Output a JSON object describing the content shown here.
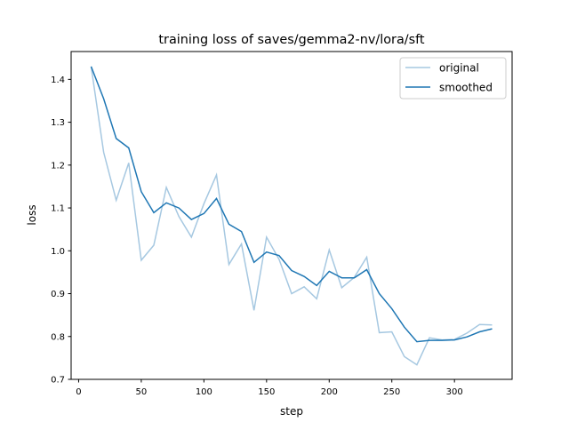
{
  "chart_data": {
    "type": "line",
    "title": "training loss of saves/gemma2-nv/lora/sft",
    "xlabel": "step",
    "ylabel": "loss",
    "xlim": [
      -6,
      346
    ],
    "ylim": [
      0.7,
      1.465
    ],
    "xticks": [
      0,
      50,
      100,
      150,
      200,
      250,
      300
    ],
    "yticks": [
      0.7,
      0.8,
      0.9,
      1.0,
      1.1,
      1.2,
      1.3,
      1.4
    ],
    "ytick_labels": [
      "0.7",
      "0.8",
      "0.9",
      "1.0",
      "1.1",
      "1.2",
      "1.3",
      "1.4"
    ],
    "grid": false,
    "legend_position": "top-right",
    "x": [
      10,
      20,
      30,
      40,
      50,
      60,
      70,
      80,
      90,
      100,
      110,
      120,
      130,
      140,
      150,
      160,
      170,
      180,
      190,
      200,
      210,
      220,
      230,
      240,
      250,
      260,
      270,
      280,
      290,
      300,
      310,
      320,
      330
    ],
    "series": [
      {
        "name": "original",
        "color": "#a6c8e1",
        "values": [
          1.43,
          1.23,
          1.118,
          1.205,
          0.978,
          1.013,
          1.148,
          1.08,
          1.032,
          1.11,
          1.177,
          0.968,
          1.016,
          0.861,
          1.032,
          0.98,
          0.9,
          0.916,
          0.888,
          1.002,
          0.914,
          0.938,
          0.985,
          0.809,
          0.811,
          0.753,
          0.734,
          0.797,
          0.792,
          0.793,
          0.808,
          0.828,
          0.827
        ]
      },
      {
        "name": "smoothed",
        "color": "#1f77b4",
        "values": [
          1.43,
          1.355,
          1.262,
          1.24,
          1.138,
          1.089,
          1.112,
          1.1,
          1.073,
          1.087,
          1.122,
          1.062,
          1.045,
          0.973,
          0.997,
          0.989,
          0.954,
          0.94,
          0.919,
          0.952,
          0.937,
          0.937,
          0.956,
          0.9,
          0.865,
          0.822,
          0.788,
          0.791,
          0.791,
          0.792,
          0.799,
          0.811,
          0.818
        ]
      }
    ]
  }
}
